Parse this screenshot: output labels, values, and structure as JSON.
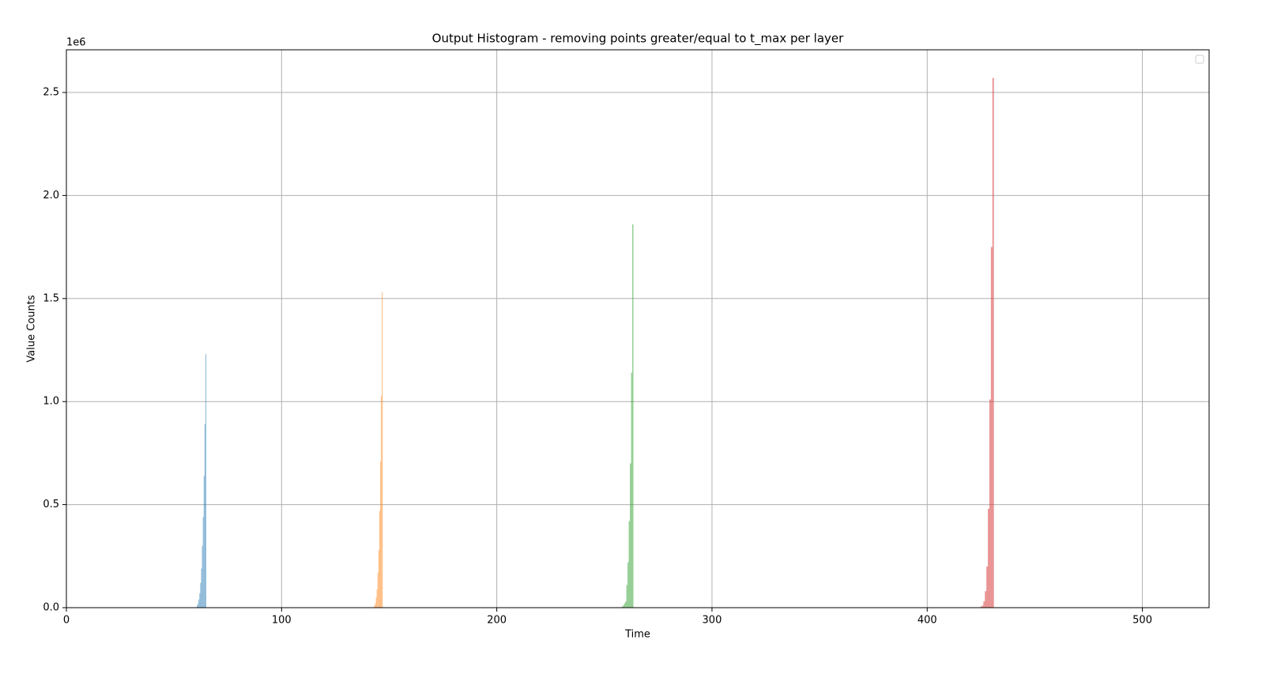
{
  "chart_data": {
    "type": "histogram",
    "title": "Output Histogram - removing points greater/equal to t_max per layer",
    "x_label": "Time",
    "y_label": "Value Counts",
    "y_offset_label": "1e6",
    "xlim": [
      0,
      531
    ],
    "ylim": [
      0,
      2707000
    ],
    "xticks": [
      0,
      100,
      200,
      300,
      400,
      500
    ],
    "yticks": [
      {
        "value": 0,
        "label": "0.0"
      },
      {
        "value": 500000,
        "label": "0.5"
      },
      {
        "value": 1000000,
        "label": "1.0"
      },
      {
        "value": 1500000,
        "label": "1.5"
      },
      {
        "value": 2000000,
        "label": "2.0"
      },
      {
        "value": 2500000,
        "label": "2.5"
      }
    ],
    "grid": true,
    "alpha": 0.5,
    "legend": "upper right",
    "series": [
      {
        "color": "#1f77b4",
        "bins": [
          60.6,
          61.0,
          61.4,
          61.8,
          62.2,
          62.6,
          63.0,
          63.4,
          63.8,
          64.2,
          64.6,
          65.0
        ],
        "values": [
          10000,
          20000,
          40000,
          70000,
          120000,
          190000,
          300000,
          440000,
          640000,
          890000,
          1230000
        ]
      },
      {
        "color": "#ff7f0e",
        "bins": [
          143.0,
          143.4,
          143.8,
          144.2,
          144.6,
          145.0,
          145.4,
          145.8,
          146.2,
          146.6,
          147.0
        ],
        "values": [
          10000,
          20000,
          50000,
          90000,
          170000,
          280000,
          470000,
          710000,
          1030000,
          1530000
        ]
      },
      {
        "color": "#2ca02c",
        "bins": [
          258.0,
          258.55,
          259.1,
          259.65,
          260.2,
          260.75,
          261.3,
          261.85,
          262.4,
          262.95,
          263.5
        ],
        "values": [
          5000,
          10000,
          20000,
          30000,
          110000,
          220000,
          420000,
          700000,
          1140000,
          1860000
        ]
      },
      {
        "color": "#d62728",
        "bins": [
          424.7,
          425.4,
          426.1,
          426.8,
          427.5,
          428.2,
          428.9,
          429.6,
          430.3,
          431.0
        ],
        "values": [
          5000,
          10000,
          30000,
          80000,
          200000,
          480000,
          1010000,
          1750000,
          2570000
        ]
      }
    ]
  }
}
